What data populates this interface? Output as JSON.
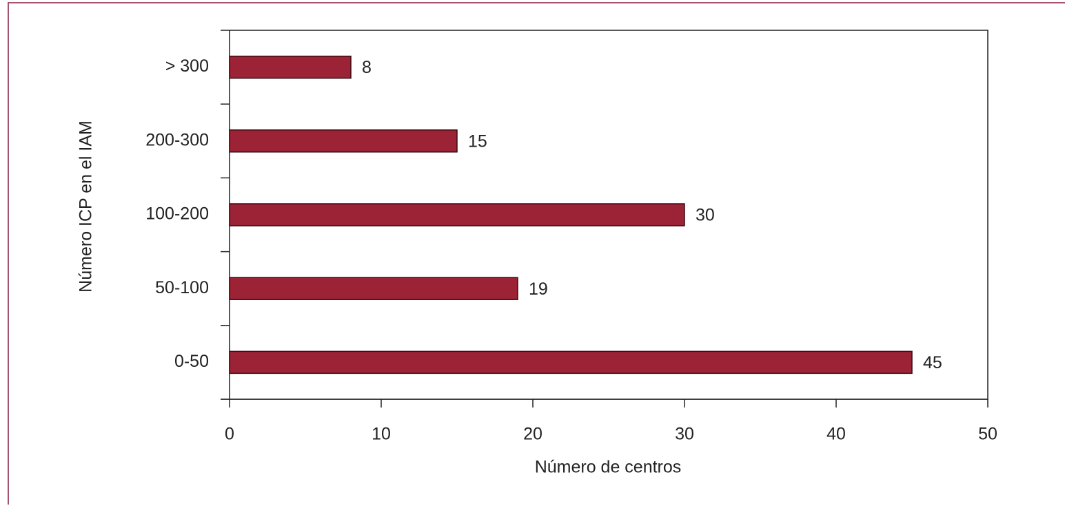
{
  "chart_data": {
    "type": "barh",
    "xlabel": "Número de centros",
    "ylabel": "Número ICP en el IAM",
    "categories": [
      "0-50",
      "50-100",
      "100-200",
      "200-300",
      "> 300"
    ],
    "values": [
      45,
      19,
      30,
      15,
      8
    ],
    "color": "#9b2335",
    "xlim": [
      0,
      50
    ],
    "xticks": [
      0,
      10,
      20,
      30,
      40,
      50
    ],
    "grid": false
  }
}
